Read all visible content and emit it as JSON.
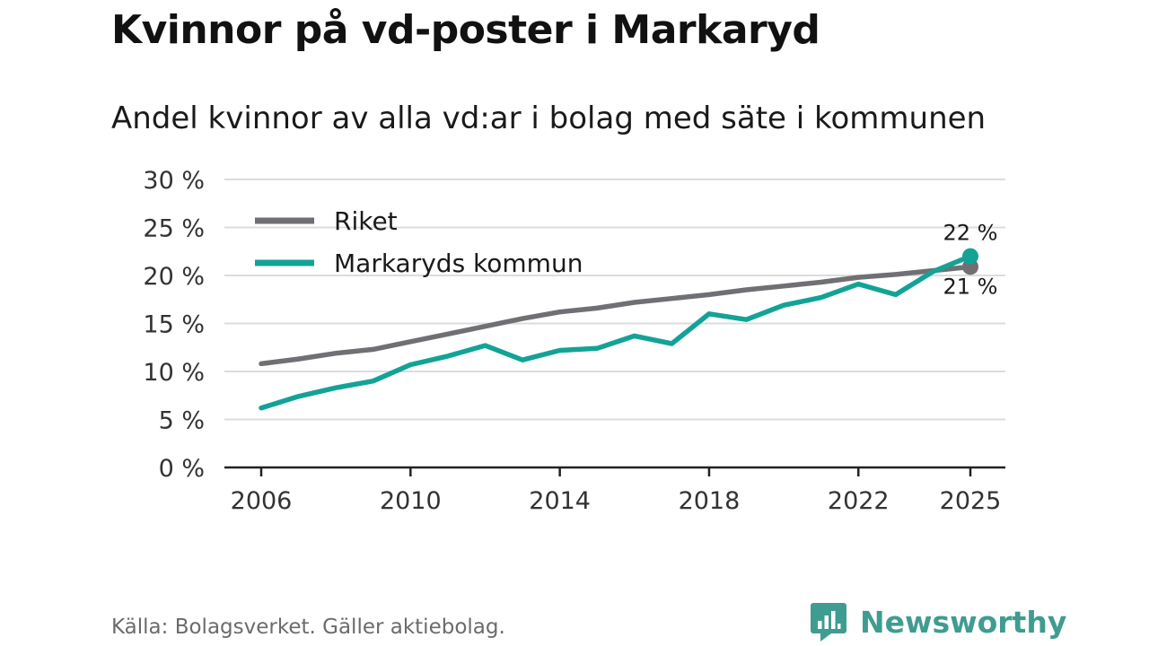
{
  "title": "Kvinnor på vd-poster i Markaryd",
  "subtitle": "Andel kvinnor av alla vd:ar i bolag med säte i kommunen",
  "source": "Källa: Bolagsverket. Gäller aktiebolag.",
  "brand": "Newsworthy",
  "colors": {
    "riket": "#706f73",
    "markaryd": "#13a396",
    "grid": "#dcdcdc",
    "axis": "#222222",
    "brand": "#3f9c90"
  },
  "chart_data": {
    "type": "line",
    "title": "Andel kvinnor av alla vd:ar i bolag med säte i kommunen",
    "xlabel": "",
    "ylabel": "",
    "x": [
      2006,
      2007,
      2008,
      2009,
      2010,
      2011,
      2012,
      2013,
      2014,
      2015,
      2016,
      2017,
      2018,
      2019,
      2020,
      2021,
      2022,
      2023,
      2024,
      2025
    ],
    "xticks": [
      2006,
      2010,
      2014,
      2018,
      2022,
      2025
    ],
    "xtick_labels": [
      "2006",
      "2010",
      "2014",
      "2018",
      "2022",
      "2025"
    ],
    "xlim": [
      2006,
      2025
    ],
    "ylim": [
      0,
      30
    ],
    "yticks": [
      0,
      5,
      10,
      15,
      20,
      25,
      30
    ],
    "ytick_labels": [
      "0 %",
      "5 %",
      "10 %",
      "15 %",
      "20 %",
      "25 %",
      "30 %"
    ],
    "grid": true,
    "legend": "top-left",
    "series": [
      {
        "name": "Riket",
        "color": "#706f73",
        "values": [
          10.8,
          11.3,
          11.9,
          12.3,
          13.1,
          13.9,
          14.7,
          15.5,
          16.2,
          16.6,
          17.2,
          17.6,
          18.0,
          18.5,
          18.9,
          19.3,
          19.8,
          20.1,
          20.5,
          20.9
        ],
        "end_label": "21 %"
      },
      {
        "name": "Markaryds kommun",
        "color": "#13a396",
        "values": [
          6.2,
          7.4,
          8.3,
          9.0,
          10.7,
          11.6,
          12.7,
          11.2,
          12.2,
          12.4,
          13.7,
          12.9,
          16.0,
          15.4,
          16.9,
          17.7,
          19.1,
          18.0,
          20.4,
          22.0
        ],
        "end_label": "22 %"
      }
    ]
  }
}
